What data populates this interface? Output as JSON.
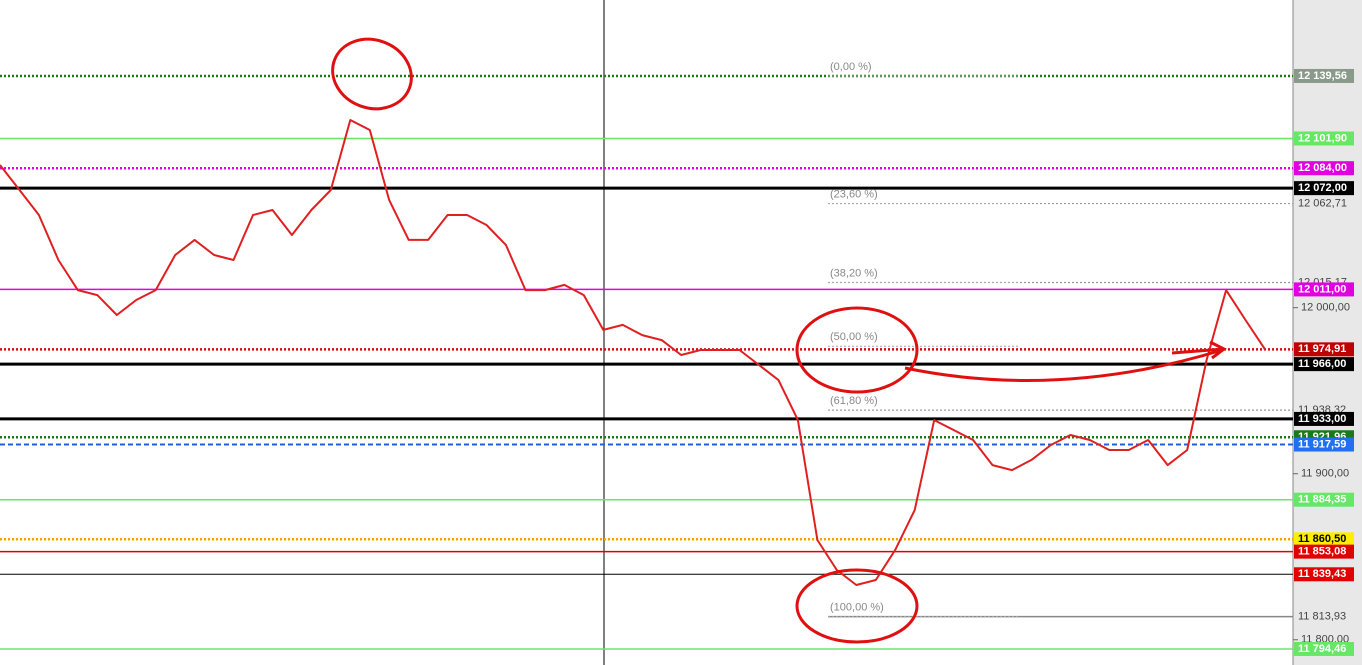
{
  "chart_data": {
    "type": "line",
    "ylim": [
      11784.8,
      12185.3
    ],
    "yticks": [
      {
        "value": 12000,
        "label": "12 000,00"
      },
      {
        "value": 11900,
        "label": "11 900,00"
      },
      {
        "value": 11800,
        "label": "11 800,00"
      }
    ],
    "series": [
      {
        "color": "#e02020",
        "values": [
          12085.9,
          12070.9,
          12055.8,
          12028.7,
          12010.6,
          12007.6,
          11995.6,
          12004.6,
          12010.6,
          12031.7,
          12040.8,
          12031.7,
          12028.7,
          12055.8,
          12058.8,
          12043.8,
          12058.8,
          12070.9,
          12113.0,
          12107.0,
          12064.8,
          12040.8,
          12040.8,
          12055.8,
          12055.8,
          12049.8,
          12037.7,
          12010.6,
          12010.6,
          12013.7,
          12007.6,
          11986.6,
          11989.6,
          11983.5,
          11980.5,
          11971.5,
          11974.5,
          11974.5,
          11974.5,
          11965.5,
          11956.4,
          11932.3,
          11860.1,
          11842.0,
          11833.0,
          11836.0,
          11854.1,
          11878.1,
          11932.3,
          11926.3,
          11920.3,
          11905.2,
          11902.2,
          11908.3,
          11917.3,
          11923.3,
          11920.3,
          11914.3,
          11914.3,
          11920.3,
          11905.2,
          11914.3,
          11968.5,
          12010.6,
          11992.6,
          11974.91
        ]
      }
    ],
    "levels": [
      {
        "value": 12139.56,
        "label": "12 139,56",
        "color": "#1a7a1a",
        "style": "dotted",
        "label_bg": "#8a9a8a",
        "label_color": "#ffffff"
      },
      {
        "value": 12101.9,
        "label": "12 101,90",
        "color": "#66e866",
        "style": "solid",
        "label_bg": "#66e866",
        "label_color": "#ffffff"
      },
      {
        "value": 12084.0,
        "label": "12 084,00",
        "color": "#e000e0",
        "style": "dotted",
        "label_bg": "#e000e0",
        "label_color": "#ffffff"
      },
      {
        "value": 12072.0,
        "label": "12 072,00",
        "color": "#000000",
        "style": "thick",
        "label_bg": "#000000",
        "label_color": "#ffffff"
      },
      {
        "value": 12062.71,
        "label": "12 062,71",
        "color": "#999999",
        "style": "dotted-fib",
        "label_bg": "none",
        "label_color": "#444444"
      },
      {
        "value": 12015.17,
        "label": "12 015,17",
        "color": "#999999",
        "style": "dotted-fib",
        "label_bg": "none",
        "label_color": "#444444"
      },
      {
        "value": 12011.0,
        "label": "12 011,00",
        "color": "#e000e0",
        "style": "solid",
        "label_bg": "#e000e0",
        "label_color": "#ffffff"
      },
      {
        "value": 11974.91,
        "label": "11 974,91",
        "color": "#d01010",
        "style": "dotted",
        "label_bg": "#c00000",
        "label_color": "#ffffff"
      },
      {
        "value": 11966.0,
        "label": "11 966,00",
        "color": "#000000",
        "style": "thick",
        "label_bg": "#000000",
        "label_color": "#ffffff"
      },
      {
        "value": 11938.32,
        "label": "11 938,32",
        "color": "#999999",
        "style": "dotted-fib",
        "label_bg": "none",
        "label_color": "#444444"
      },
      {
        "value": 11933.0,
        "label": "11 933,00",
        "color": "#000000",
        "style": "thick",
        "label_bg": "#000000",
        "label_color": "#ffffff"
      },
      {
        "value": 11921.96,
        "label": "11 921,96",
        "color": "#1a7a1a",
        "style": "dotted",
        "label_bg": "#1a7a1a",
        "label_color": "#ffffff"
      },
      {
        "value": 11917.59,
        "label": "11 917,59",
        "color": "#2060e0",
        "style": "dashed",
        "label_bg": "#2070f0",
        "label_color": "#ffffff"
      },
      {
        "value": 11884.35,
        "label": "11 884,35",
        "color": "#66e866",
        "style": "solid",
        "label_bg": "#66e866",
        "label_color": "#ffffff"
      },
      {
        "value": 11860.5,
        "label": "11 860,50",
        "color": "#ffa000",
        "style": "dotted",
        "label_bg": "#ffee00",
        "label_color": "#000000"
      },
      {
        "value": 11853.08,
        "label": "11 853,08",
        "color": "#e00000",
        "style": "solid",
        "label_bg": "#e00000",
        "label_color": "#ffffff"
      },
      {
        "value": 11839.43,
        "label": "11 839,43",
        "color": "#000000",
        "style": "thin",
        "label_bg": "#e00000",
        "label_color": "#ffffff"
      },
      {
        "value": 11813.93,
        "label": "11 813,93",
        "color": "#888888",
        "style": "fib-end",
        "label_bg": "none",
        "label_color": "#444444"
      },
      {
        "value": 11794.46,
        "label": "11 794,46",
        "color": "#66e866",
        "style": "solid",
        "label_bg": "#66e866",
        "label_color": "#ffffff"
      }
    ],
    "fib": [
      {
        "label": "(0,00 %)",
        "value": 12139.56
      },
      {
        "label": "(23,60 %)",
        "value": 12062.71
      },
      {
        "label": "(38,20 %)",
        "value": 12015.17
      },
      {
        "label": "(50,00 %)",
        "value": 11976.75
      },
      {
        "label": "(61,80 %)",
        "value": 11938.32
      },
      {
        "label": "(100,00 %)",
        "value": 11813.93
      }
    ]
  }
}
